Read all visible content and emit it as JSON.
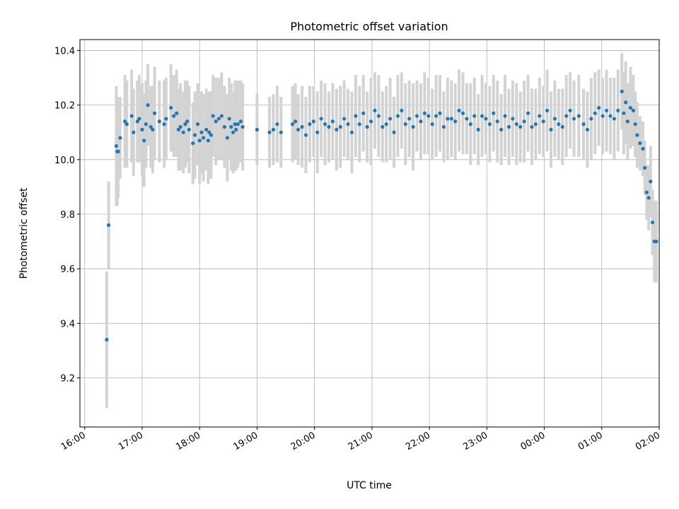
{
  "chart_data": {
    "type": "scatter",
    "title": "Photometric offset variation",
    "xlabel": "UTC time",
    "ylabel": "Photometric offset",
    "x_unit": "minutes after 16:00 UTC",
    "xlim": [
      -5,
      600
    ],
    "ylim": [
      9.02,
      10.44
    ],
    "grid": true,
    "point_color": "#1f77b4",
    "errorbar_color": "#d3d3d3",
    "x_ticks": [
      {
        "label": "16:00",
        "value": 0
      },
      {
        "label": "17:00",
        "value": 60
      },
      {
        "label": "18:00",
        "value": 120
      },
      {
        "label": "19:00",
        "value": 180
      },
      {
        "label": "20:00",
        "value": 240
      },
      {
        "label": "21:00",
        "value": 300
      },
      {
        "label": "22:00",
        "value": 360
      },
      {
        "label": "23:00",
        "value": 420
      },
      {
        "label": "00:00",
        "value": 480
      },
      {
        "label": "01:00",
        "value": 540
      },
      {
        "label": "02:00",
        "value": 600
      }
    ],
    "y_ticks": [
      {
        "label": "9.2",
        "value": 9.2
      },
      {
        "label": "9.4",
        "value": 9.4
      },
      {
        "label": "9.6",
        "value": 9.6
      },
      {
        "label": "9.8",
        "value": 9.8
      },
      {
        "label": "10.0",
        "value": 10.0
      },
      {
        "label": "10.2",
        "value": 10.2
      },
      {
        "label": "10.4",
        "value": 10.4
      }
    ],
    "series": [
      {
        "name": "offset",
        "x": [
          23,
          25,
          33,
          34,
          35,
          37,
          42,
          44,
          49,
          51,
          55,
          57,
          60,
          62,
          64,
          66,
          69,
          71,
          73,
          78,
          83,
          85,
          90,
          93,
          96,
          98,
          100,
          103,
          105,
          107,
          109,
          113,
          115,
          118,
          120,
          122,
          124,
          127,
          129,
          130,
          132,
          134,
          137,
          140,
          143,
          146,
          149,
          151,
          153,
          155,
          157,
          158,
          160,
          163,
          165,
          180,
          193,
          197,
          201,
          205,
          217,
          220,
          223,
          227,
          231,
          235,
          239,
          243,
          247,
          251,
          255,
          259,
          263,
          267,
          271,
          275,
          279,
          283,
          287,
          291,
          295,
          299,
          303,
          307,
          311,
          315,
          319,
          323,
          327,
          331,
          335,
          339,
          343,
          347,
          351,
          355,
          359,
          363,
          367,
          371,
          375,
          379,
          383,
          387,
          391,
          395,
          399,
          403,
          407,
          411,
          415,
          419,
          423,
          427,
          431,
          435,
          439,
          443,
          447,
          451,
          455,
          459,
          463,
          467,
          471,
          475,
          479,
          483,
          487,
          491,
          495,
          499,
          503,
          507,
          511,
          516,
          521,
          525,
          529,
          533,
          537,
          541,
          545,
          549,
          553,
          557,
          561,
          563,
          565,
          567,
          570,
          573,
          575,
          577,
          580,
          583,
          585,
          587,
          589,
          591,
          593,
          595,
          597
        ],
        "y": [
          9.34,
          9.76,
          10.05,
          10.03,
          10.03,
          10.08,
          10.14,
          10.13,
          10.16,
          10.1,
          10.14,
          10.15,
          10.11,
          10.07,
          10.13,
          10.2,
          10.12,
          10.11,
          10.17,
          10.14,
          10.13,
          10.15,
          10.19,
          10.16,
          10.17,
          10.11,
          10.12,
          10.1,
          10.13,
          10.14,
          10.11,
          10.06,
          10.09,
          10.13,
          10.07,
          10.1,
          10.08,
          10.11,
          10.07,
          10.1,
          10.09,
          10.16,
          10.14,
          10.15,
          10.16,
          10.12,
          10.08,
          10.15,
          10.12,
          10.1,
          10.13,
          10.11,
          10.13,
          10.14,
          10.12,
          10.11,
          10.1,
          10.11,
          10.13,
          10.1,
          10.13,
          10.14,
          10.11,
          10.12,
          10.09,
          10.13,
          10.14,
          10.1,
          10.15,
          10.13,
          10.12,
          10.14,
          10.11,
          10.12,
          10.15,
          10.13,
          10.1,
          10.16,
          10.13,
          10.17,
          10.12,
          10.14,
          10.18,
          10.16,
          10.12,
          10.13,
          10.15,
          10.1,
          10.16,
          10.18,
          10.13,
          10.15,
          10.12,
          10.16,
          10.14,
          10.17,
          10.16,
          10.13,
          10.16,
          10.17,
          10.12,
          10.15,
          10.15,
          10.14,
          10.18,
          10.17,
          10.15,
          10.13,
          10.16,
          10.11,
          10.16,
          10.15,
          10.13,
          10.17,
          10.14,
          10.11,
          10.16,
          10.12,
          10.15,
          10.13,
          10.12,
          10.14,
          10.17,
          10.12,
          10.13,
          10.16,
          10.14,
          10.18,
          10.11,
          10.15,
          10.13,
          10.12,
          10.16,
          10.18,
          10.15,
          10.16,
          10.13,
          10.11,
          10.15,
          10.17,
          10.19,
          10.16,
          10.18,
          10.16,
          10.15,
          10.18,
          10.25,
          10.17,
          10.21,
          10.14,
          10.19,
          10.18,
          10.13,
          10.09,
          10.06,
          10.04,
          9.97,
          9.88,
          9.86,
          9.92,
          9.77,
          9.7,
          9.7
        ],
        "err": [
          0.25,
          0.16,
          0.22,
          0.2,
          0.17,
          0.15,
          0.17,
          0.16,
          0.17,
          0.16,
          0.15,
          0.16,
          0.17,
          0.17,
          0.16,
          0.15,
          0.15,
          0.16,
          0.17,
          0.15,
          0.16,
          0.15,
          0.16,
          0.15,
          0.16,
          0.15,
          0.16,
          0.15,
          0.16,
          0.15,
          0.16,
          0.15,
          0.16,
          0.15,
          0.16,
          0.15,
          0.16,
          0.15,
          0.16,
          0.15,
          0.16,
          0.15,
          0.16,
          0.15,
          0.16,
          0.15,
          0.16,
          0.15,
          0.16,
          0.15,
          0.16,
          0.15,
          0.16,
          0.15,
          0.16,
          0.13,
          0.13,
          0.13,
          0.14,
          0.13,
          0.14,
          0.14,
          0.13,
          0.15,
          0.14,
          0.14,
          0.13,
          0.15,
          0.14,
          0.15,
          0.13,
          0.14,
          0.15,
          0.15,
          0.14,
          0.13,
          0.15,
          0.15,
          0.14,
          0.14,
          0.13,
          0.16,
          0.14,
          0.15,
          0.13,
          0.14,
          0.15,
          0.13,
          0.15,
          0.14,
          0.15,
          0.14,
          0.16,
          0.13,
          0.14,
          0.15,
          0.14,
          0.13,
          0.15,
          0.14,
          0.13,
          0.15,
          0.14,
          0.14,
          0.15,
          0.15,
          0.13,
          0.15,
          0.14,
          0.13,
          0.15,
          0.13,
          0.14,
          0.14,
          0.15,
          0.13,
          0.15,
          0.14,
          0.14,
          0.15,
          0.13,
          0.15,
          0.14,
          0.14,
          0.13,
          0.14,
          0.13,
          0.15,
          0.14,
          0.14,
          0.13,
          0.14,
          0.15,
          0.14,
          0.14,
          0.15,
          0.13,
          0.14,
          0.15,
          0.15,
          0.14,
          0.14,
          0.15,
          0.14,
          0.15,
          0.15,
          0.14,
          0.15,
          0.15,
          0.14,
          0.15,
          0.13,
          0.12,
          0.12,
          0.1,
          0.1,
          0.1,
          0.1,
          0.12,
          0.13,
          0.12,
          0.15,
          0.15
        ]
      }
    ]
  }
}
